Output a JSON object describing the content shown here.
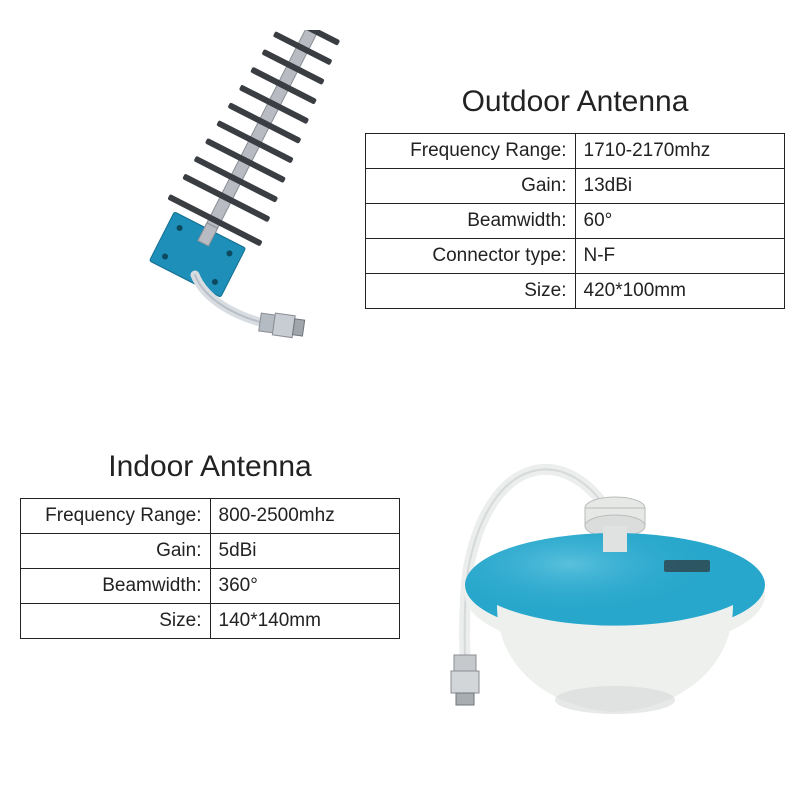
{
  "outdoor": {
    "title": "Outdoor Antenna",
    "rows": [
      {
        "label": "Frequency Range:",
        "value": "1710-2170mhz"
      },
      {
        "label": "Gain:",
        "value": "13dBi"
      },
      {
        "label": "Beamwidth:",
        "value": "60°"
      },
      {
        "label": "Connector type:",
        "value": "N-F"
      },
      {
        "label": "Size:",
        "value": "420*100mm"
      }
    ],
    "illustration": {
      "type": "yagi-antenna",
      "boom_color": "#b8bcc2",
      "element_color": "#3a3d42",
      "element_count": 11,
      "mount_plate_color": "#1d8fb8",
      "cable_color": "#d8dde2",
      "connector_color": "#b5bbc2"
    }
  },
  "indoor": {
    "title": "Indoor Antenna",
    "rows": [
      {
        "label": "Frequency Range:",
        "value": "800-2500mhz"
      },
      {
        "label": "Gain:",
        "value": "5dBi"
      },
      {
        "label": "Beamwidth:",
        "value": "360°"
      },
      {
        "label": "Size:",
        "value": "140*140mm"
      }
    ],
    "illustration": {
      "type": "ceiling-antenna",
      "dome_color": "#eef0ee",
      "dome_shadow": "#cfd3d1",
      "disc_color": "#28a7cc",
      "cable_color": "#eceeee",
      "connector_color": "#c5c9cc",
      "mount_color": "#e6e8e6"
    }
  },
  "page": {
    "background": "#ffffff",
    "border_color": "#222222",
    "text_color": "#222222",
    "title_fontsize": 30,
    "cell_fontsize": 19
  }
}
